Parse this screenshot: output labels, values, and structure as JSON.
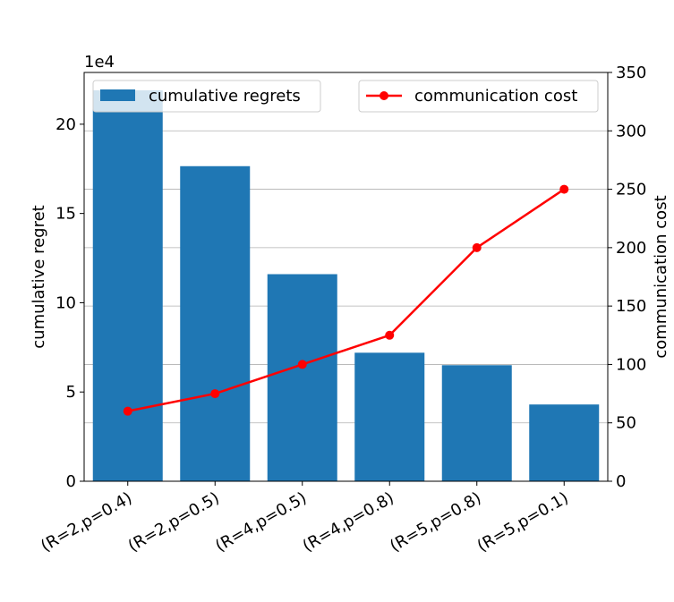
{
  "chart_data": {
    "type": "bar",
    "categories": [
      "(R=2,p=0.4)",
      "(R=2,p=0.5)",
      "(R=4,p=0.5)",
      "(R=4,p=0.8)",
      "(R=5,p=0.8)",
      "(R=5,p=0.1)"
    ],
    "series": [
      {
        "name": "cumulative regrets",
        "type": "bar",
        "axis": "left",
        "color": "#1f77b4",
        "values": [
          219000,
          176500,
          116000,
          72000,
          65000,
          43000
        ]
      },
      {
        "name": "communication cost",
        "type": "line",
        "axis": "right",
        "color": "#ff0000",
        "marker": "circle",
        "values": [
          60,
          75,
          100,
          125,
          200,
          250
        ]
      }
    ],
    "left_axis": {
      "label": "cumulative regret",
      "offset_text": "1e4",
      "ylim": [
        0,
        229000
      ],
      "ticks": [
        0,
        50000,
        100000,
        150000,
        200000
      ],
      "tick_labels": [
        "0",
        "5",
        "10",
        "15",
        "20"
      ]
    },
    "right_axis": {
      "label": "communication cost",
      "ylim": [
        0,
        350
      ],
      "ticks": [
        0,
        50,
        100,
        150,
        200,
        250,
        300,
        350
      ],
      "tick_labels": [
        "0",
        "50",
        "100",
        "150",
        "200",
        "250",
        "300",
        "350"
      ]
    },
    "grid": "horizontal, right axis",
    "legends": [
      {
        "label": "cumulative regrets",
        "placement": "top-left"
      },
      {
        "label": "communication cost",
        "placement": "top-right"
      }
    ]
  }
}
